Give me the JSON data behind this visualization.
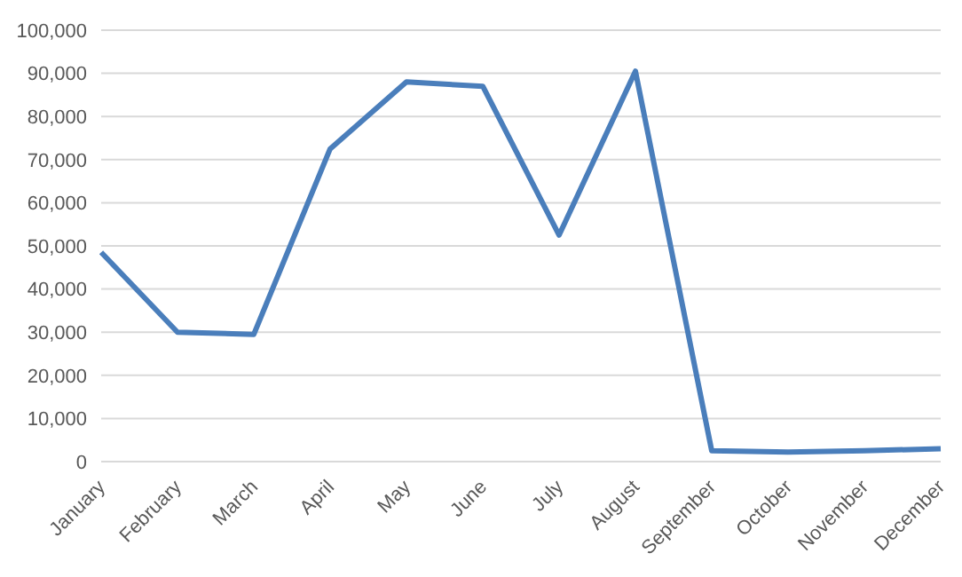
{
  "chart_data": {
    "type": "line",
    "categories": [
      "January",
      "February",
      "March",
      "April",
      "May",
      "June",
      "July",
      "August",
      "September",
      "October",
      "November",
      "December"
    ],
    "series": [
      {
        "color": "#4a7ebb",
        "values": [
          48500,
          30000,
          29500,
          72500,
          88000,
          87000,
          52500,
          90500,
          2500,
          2200,
          2500,
          3000
        ]
      }
    ],
    "ylim": [
      0,
      100000
    ],
    "yticks": [
      0,
      {
        "value": 10000,
        "label": "10,000"
      },
      {
        "value": 20000,
        "label": "20,000"
      },
      {
        "value": 30000,
        "label": "30,000"
      },
      {
        "value": 40000,
        "label": "40,000"
      },
      {
        "value": 50000,
        "label": "50,000"
      },
      {
        "value": 60000,
        "label": "60,000"
      },
      {
        "value": 70000,
        "label": "70,000"
      },
      {
        "value": 80000,
        "label": "80,000"
      },
      {
        "value": 90000,
        "label": "90,000"
      },
      {
        "value": 100000,
        "label": "100,000"
      }
    ],
    "grid": "y",
    "marker": "none",
    "line_style": "solid",
    "legend": false
  }
}
